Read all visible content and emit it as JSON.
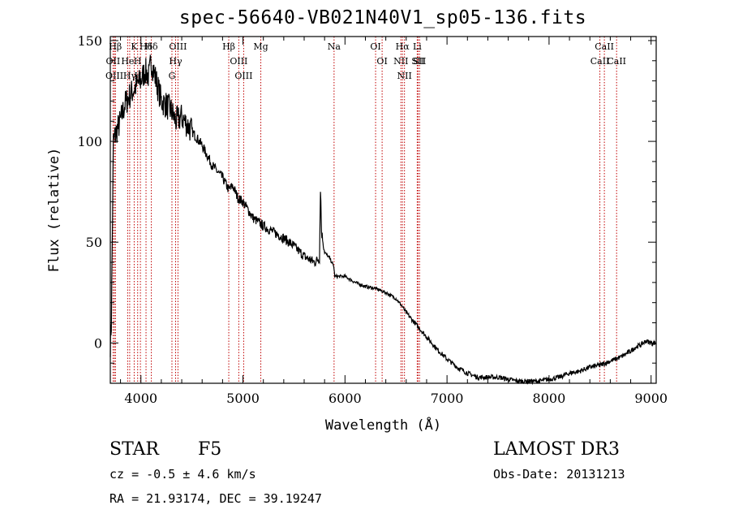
{
  "chart_data": {
    "type": "line",
    "title": "spec-56640-VB021N40V1_sp05-136.fits",
    "xlabel": "Wavelength (Å)",
    "ylabel": "Flux (relative)",
    "xlim": [
      3700,
      9050
    ],
    "ylim": [
      -20,
      152
    ],
    "xticks": [
      4000,
      5000,
      6000,
      7000,
      8000,
      9000
    ],
    "yticks": [
      0,
      50,
      100,
      150
    ],
    "grid": false,
    "series": [
      {
        "name": "spectrum",
        "x": [
          3700,
          3710,
          3730,
          3760,
          3800,
          3840,
          3880,
          3920,
          3960,
          4000,
          4040,
          4080,
          4100,
          4150,
          4200,
          4250,
          4300,
          4340,
          4400,
          4500,
          4600,
          4700,
          4800,
          4861,
          4900,
          4950,
          5000,
          5100,
          5200,
          5300,
          5400,
          5500,
          5600,
          5700,
          5750,
          5760,
          5770,
          5780,
          5800,
          5850,
          5890,
          5900,
          6000,
          6100,
          6200,
          6300,
          6400,
          6500,
          6563,
          6600,
          6700,
          6800,
          6900,
          7000,
          7100,
          7200,
          7300,
          7400,
          7500,
          7600,
          7700,
          7800,
          7900,
          8000,
          8100,
          8200,
          8300,
          8400,
          8500,
          8600,
          8700,
          8800,
          8850,
          8900,
          8950,
          9000,
          9050
        ],
        "y": [
          0,
          10,
          100,
          105,
          110,
          118,
          122,
          125,
          128,
          130,
          135,
          132,
          140,
          130,
          120,
          118,
          115,
          110,
          112,
          105,
          98,
          88,
          82,
          76,
          78,
          72,
          70,
          62,
          58,
          55,
          52,
          48,
          43,
          40,
          42,
          77,
          55,
          52,
          45,
          42,
          38,
          33,
          33,
          30,
          28,
          27,
          25,
          22,
          18,
          15,
          9,
          3,
          -3,
          -8,
          -12,
          -15,
          -17,
          -17,
          -17,
          -18,
          -19,
          -19,
          -19,
          -18,
          -17,
          -15,
          -14,
          -12,
          -11,
          -9,
          -7,
          -4,
          -2,
          -1,
          1,
          0,
          0
        ]
      }
    ],
    "lines": [
      {
        "label": "Hβ",
        "x": 3750
      },
      {
        "label": "OII",
        "x": 3727
      },
      {
        "label": "OIII",
        "x": 3740
      },
      {
        "label": "K",
        "x": 3934
      },
      {
        "label": "He",
        "x": 3870
      },
      {
        "label": "Hγ",
        "x": 3890
      },
      {
        "label": "Hδ",
        "x": 4102
      },
      {
        "label": "H",
        "x": 3968
      },
      {
        "label": "Hε",
        "x": 3995
      },
      {
        "label": "Hδ",
        "x": 4050
      },
      {
        "label": "OIII",
        "x": 4363
      },
      {
        "label": "Hγ",
        "x": 4340
      },
      {
        "label": "G",
        "x": 4304
      },
      {
        "label": "Hβ",
        "x": 4861
      },
      {
        "label": "OIII",
        "x": 4959
      },
      {
        "label": "OIII",
        "x": 5007
      },
      {
        "label": "Mg",
        "x": 5175
      },
      {
        "label": "Na",
        "x": 5893
      },
      {
        "label": "OI",
        "x": 6300
      },
      {
        "label": "OI",
        "x": 6364
      },
      {
        "label": "Hα",
        "x": 6563
      },
      {
        "label": "NII",
        "x": 6548
      },
      {
        "label": "NII",
        "x": 6583
      },
      {
        "label": "SII",
        "x": 6716
      },
      {
        "label": "Li",
        "x": 6708
      },
      {
        "label": "SII",
        "x": 6731
      },
      {
        "label": "CaII",
        "x": 8542
      },
      {
        "label": "CaII",
        "x": 8498
      },
      {
        "label": "CaII",
        "x": 8662
      }
    ]
  },
  "info": {
    "object_class": "STAR",
    "subclass": "F5",
    "survey": "LAMOST DR3",
    "cz": "cz = -0.5 ± 4.6 km/s",
    "obs_date": "Obs-Date: 20131213",
    "radec": "RA =  21.93174, DEC =  39.19247"
  },
  "colors": {
    "axis": "#000000",
    "line_markers": "#c00000"
  }
}
